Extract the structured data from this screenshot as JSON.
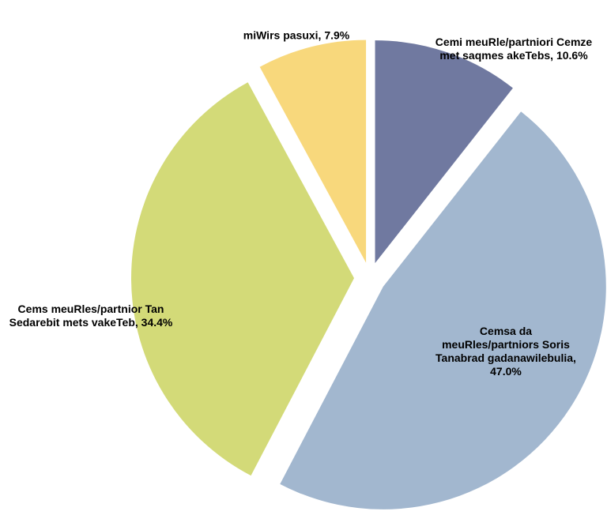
{
  "chart_data": {
    "type": "pie",
    "categories": [
      "Cemi meuRle/partniori Cemze met saqmes akeTebs,",
      "Cemsa da meuRles/partniors Soris Tanabrad gadanawilebulia,",
      "Cems meuRles/partnior Tan Sedarebit mets vakeTeb,",
      "miWirs pasuxi,"
    ],
    "values": [
      10.6,
      47.0,
      34.4,
      7.9
    ],
    "value_labels": [
      "10.6%",
      "47.0%",
      "34.4%",
      "7.9%"
    ],
    "colors": [
      "#7079a0",
      "#a2b7cf",
      "#d3da78",
      "#f8d87c"
    ]
  }
}
